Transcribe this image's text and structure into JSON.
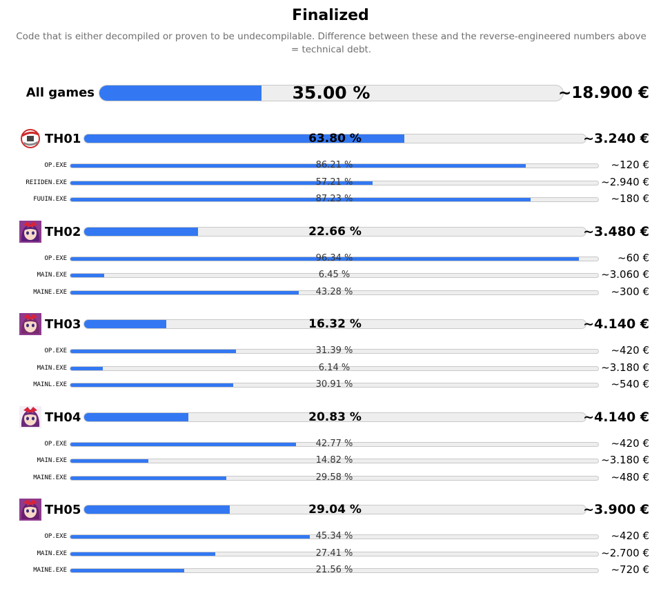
{
  "header": {
    "title": "Finalized",
    "subtitle": "Code that is either decompiled or proven to be undecompilable. Difference between these and the reverse-engineered numbers above = technical debt."
  },
  "colors": {
    "fill": "#3378f2",
    "track": "#eeeeee"
  },
  "chart_data": {
    "type": "bar",
    "orientation": "horizontal",
    "xlim": [
      0,
      100
    ],
    "total": {
      "label": "All games",
      "percent": 35.0,
      "percent_label": "35.00 %",
      "cost_label": "~18.900 €"
    },
    "games": [
      {
        "name": "TH01",
        "icon": "th01-icon",
        "percent": 63.8,
        "percent_label": "63.80 %",
        "cost_label": "~3.240 €",
        "executables": [
          {
            "name": "OP.EXE",
            "percent": 86.21,
            "percent_label": "86.21 %",
            "cost_label": "~120 €"
          },
          {
            "name": "REIIDEN.EXE",
            "percent": 57.21,
            "percent_label": "57.21 %",
            "cost_label": "~2.940 €"
          },
          {
            "name": "FUUIN.EXE",
            "percent": 87.23,
            "percent_label": "87.23 %",
            "cost_label": "~180 €"
          }
        ]
      },
      {
        "name": "TH02",
        "icon": "th02-icon",
        "percent": 22.66,
        "percent_label": "22.66 %",
        "cost_label": "~3.480 €",
        "executables": [
          {
            "name": "OP.EXE",
            "percent": 96.34,
            "percent_label": "96.34 %",
            "cost_label": "~60 €"
          },
          {
            "name": "MAIN.EXE",
            "percent": 6.45,
            "percent_label": "6.45 %",
            "cost_label": "~3.060 €"
          },
          {
            "name": "MAINE.EXE",
            "percent": 43.28,
            "percent_label": "43.28 %",
            "cost_label": "~300 €"
          }
        ]
      },
      {
        "name": "TH03",
        "icon": "th03-icon",
        "percent": 16.32,
        "percent_label": "16.32 %",
        "cost_label": "~4.140 €",
        "executables": [
          {
            "name": "OP.EXE",
            "percent": 31.39,
            "percent_label": "31.39 %",
            "cost_label": "~420 €"
          },
          {
            "name": "MAIN.EXE",
            "percent": 6.14,
            "percent_label": "6.14 %",
            "cost_label": "~3.180 €"
          },
          {
            "name": "MAINL.EXE",
            "percent": 30.91,
            "percent_label": "30.91 %",
            "cost_label": "~540 €"
          }
        ]
      },
      {
        "name": "TH04",
        "icon": "th04-icon",
        "percent": 20.83,
        "percent_label": "20.83 %",
        "cost_label": "~4.140 €",
        "executables": [
          {
            "name": "OP.EXE",
            "percent": 42.77,
            "percent_label": "42.77 %",
            "cost_label": "~420 €"
          },
          {
            "name": "MAIN.EXE",
            "percent": 14.82,
            "percent_label": "14.82 %",
            "cost_label": "~3.180 €"
          },
          {
            "name": "MAINE.EXE",
            "percent": 29.58,
            "percent_label": "29.58 %",
            "cost_label": "~480 €"
          }
        ]
      },
      {
        "name": "TH05",
        "icon": "th05-icon",
        "percent": 29.04,
        "percent_label": "29.04 %",
        "cost_label": "~3.900 €",
        "executables": [
          {
            "name": "OP.EXE",
            "percent": 45.34,
            "percent_label": "45.34 %",
            "cost_label": "~420 €"
          },
          {
            "name": "MAIN.EXE",
            "percent": 27.41,
            "percent_label": "27.41 %",
            "cost_label": "~2.700 €"
          },
          {
            "name": "MAINE.EXE",
            "percent": 21.56,
            "percent_label": "21.56 %",
            "cost_label": "~720 €"
          }
        ]
      }
    ]
  }
}
